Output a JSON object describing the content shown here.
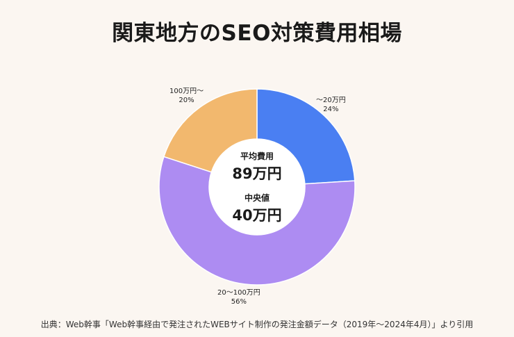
{
  "title": "関東地方のSEO対策費用相場",
  "center": {
    "average_label": "平均費用",
    "average_value": "89万円",
    "median_label": "中央値",
    "median_value": "40万円"
  },
  "source": "出典：Web幹事「Web幹事経由で発注されたWEBサイト制作の発注金額データ（2019年〜2024年4月）」より引用",
  "chart_data": {
    "type": "pie",
    "donut": true,
    "start_angle": "12 o'clock, clockwise",
    "slices": [
      {
        "label": "〜20万円",
        "value": 24,
        "value_label": "24%",
        "color": "#4a7ff2"
      },
      {
        "label": "20〜100万円",
        "value": 56,
        "value_label": "56%",
        "color": "#ad8cf2"
      },
      {
        "label": "100万円〜",
        "value": 20,
        "value_label": "20%",
        "color": "#f2b86e"
      }
    ]
  }
}
